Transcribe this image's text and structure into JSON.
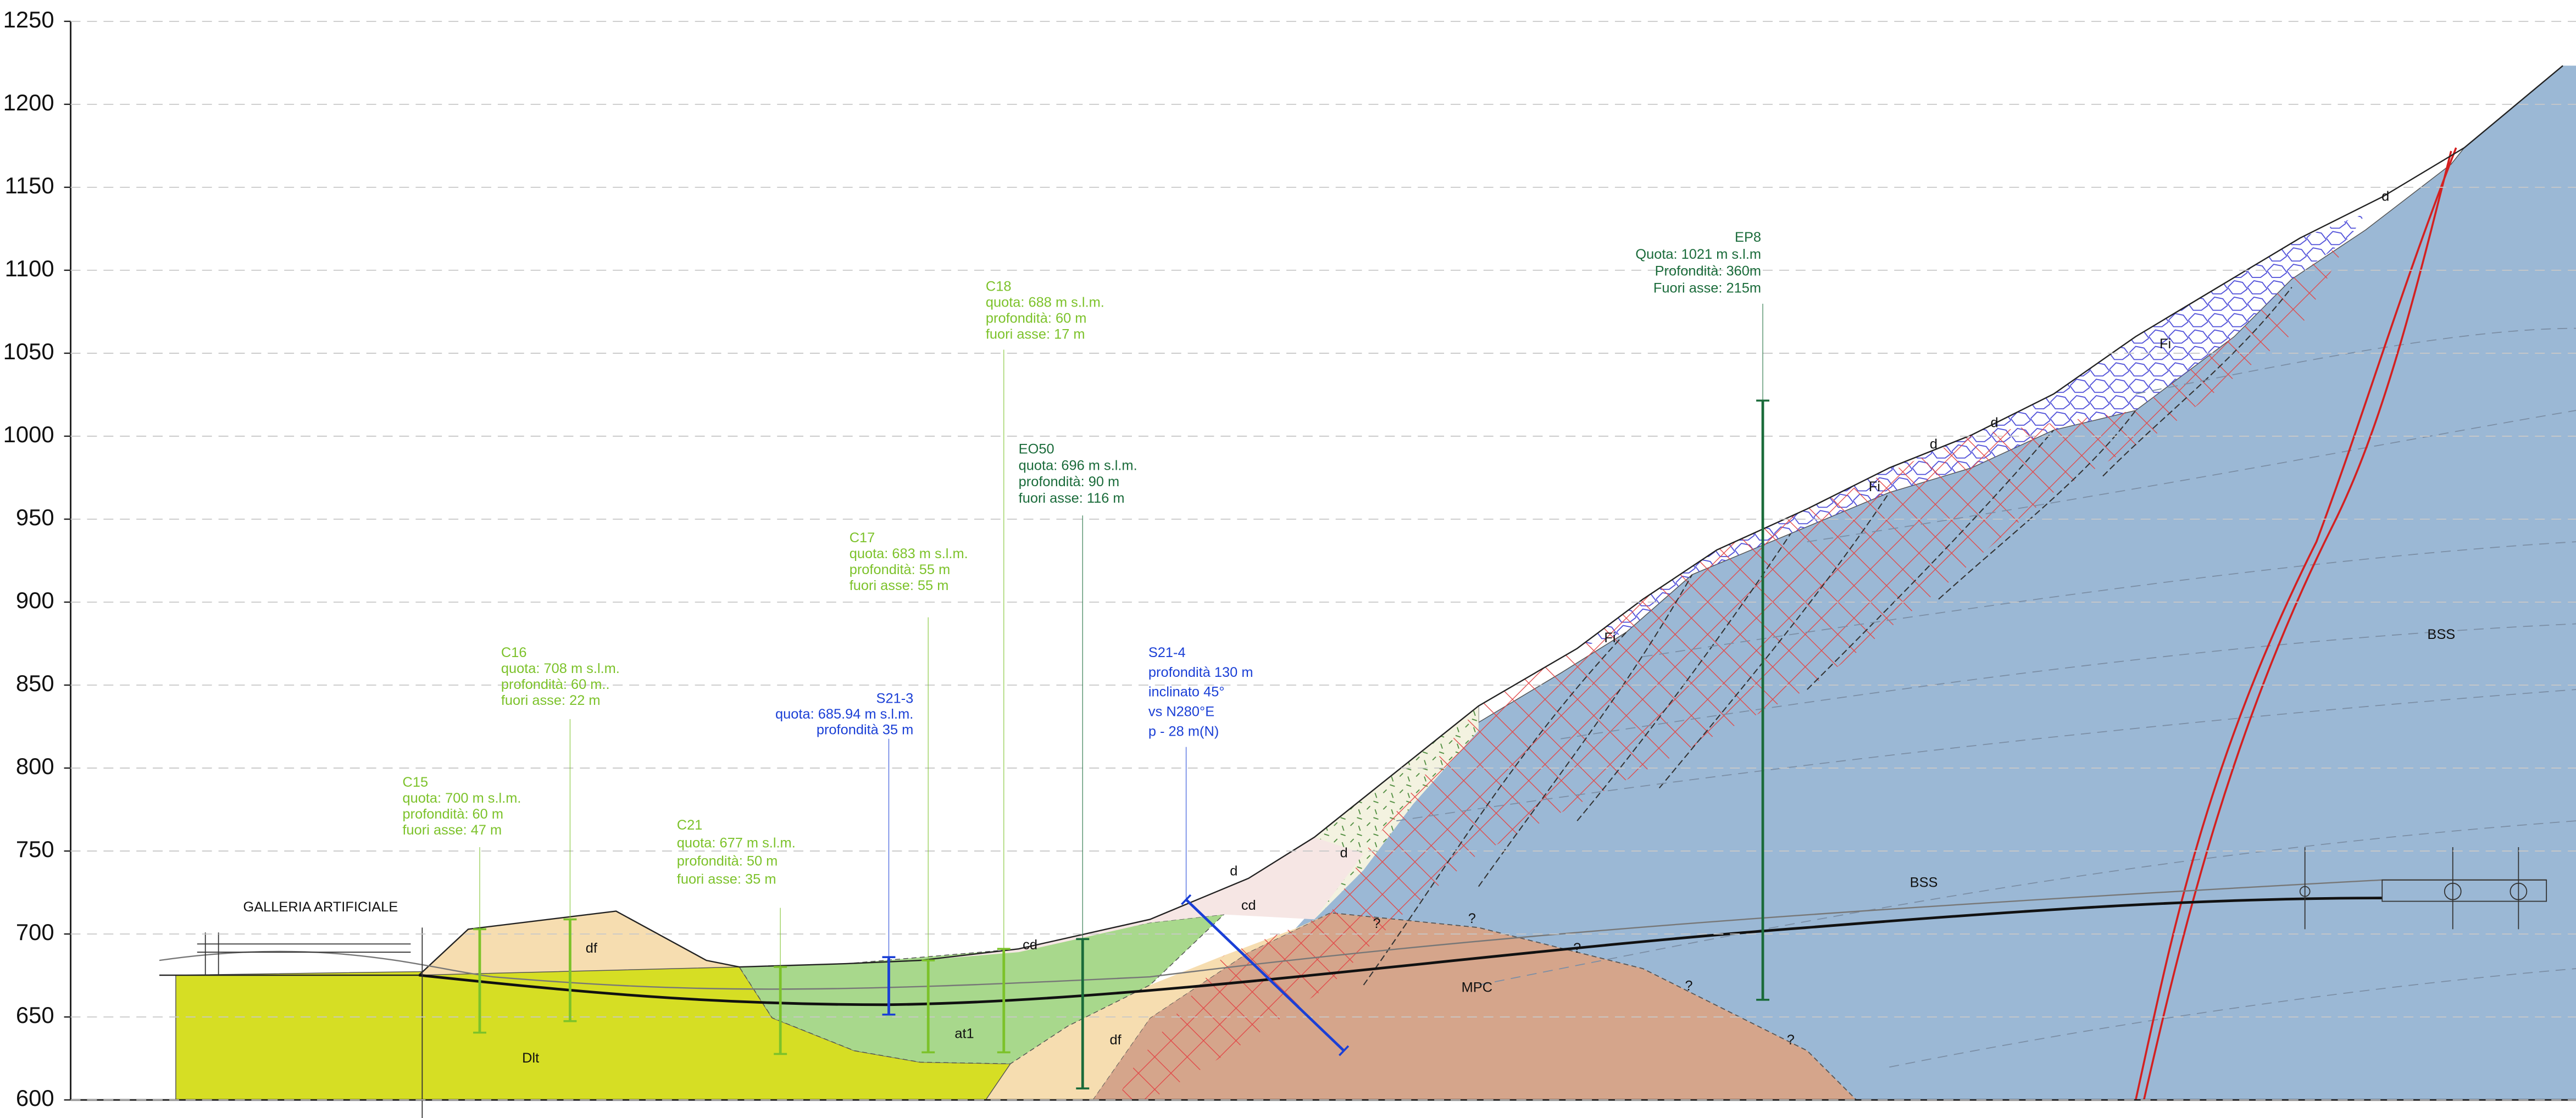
{
  "axis": {
    "ylim": [
      600,
      1250
    ],
    "yticks": [
      600,
      650,
      700,
      750,
      800,
      850,
      900,
      950,
      1000,
      1050,
      1100,
      1150,
      1200,
      1250
    ]
  },
  "structure_label": "GALLERIA ARTIFICIALE",
  "boreholes": [
    {
      "name": "C15",
      "lines": [
        "quota: 700 m s.l.m.",
        "profondità: 60 m",
        "fuori asse:  47 m"
      ]
    },
    {
      "name": "C16",
      "lines": [
        "quota: 708 m s.l.m.",
        "profondità: 60 m..",
        "fuori asse:  22 m"
      ]
    },
    {
      "name": "C21",
      "lines": [
        "quota: 677 m s.l.m.",
        "profondità: 50 m",
        "fuori asse: 35 m"
      ]
    },
    {
      "name": "S21-3",
      "lines": [
        "quota: 685.94 m s.l.m.",
        "profondità 35 m"
      ]
    },
    {
      "name": "C17",
      "lines": [
        "quota: 683 m s.l.m.",
        "profondità: 55 m",
        "fuori asse: 55 m"
      ]
    },
    {
      "name": "C18",
      "lines": [
        "quota: 688 m s.l.m.",
        "profondità: 60 m",
        "fuori asse: 17 m"
      ]
    },
    {
      "name": "EO50",
      "lines": [
        "quota: 696 m s.l.m.",
        "profondità: 90 m",
        "fuori asse: 116 m"
      ]
    },
    {
      "name": "S21-4",
      "lines": [
        "profondità 130 m",
        "inclinato 45°",
        "vs N280°E",
        "p - 28 m(N)"
      ]
    },
    {
      "name": "EP8",
      "lines": [
        "Quota: 1021 m s.l.m",
        "Profondità: 360m",
        "Fuori asse: 215m"
      ]
    }
  ],
  "units": [
    "Dlt",
    "df",
    "at1",
    "df",
    "cd",
    "cd",
    "d",
    "d",
    "MPC",
    "BSS",
    "BSS",
    "Fi",
    "Fi",
    "Fi",
    "d",
    "d",
    "d",
    "?",
    "?",
    "?",
    "?",
    "?"
  ]
}
